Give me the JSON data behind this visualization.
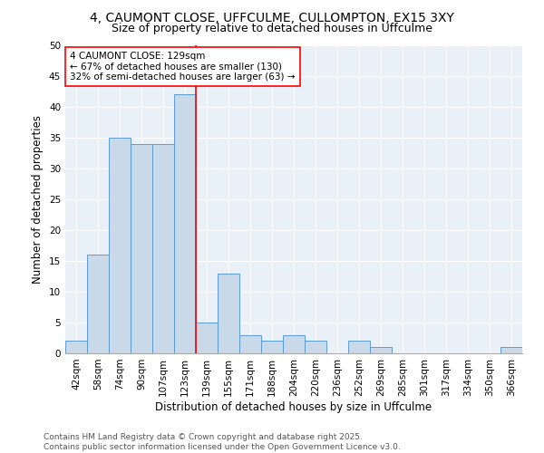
{
  "title1": "4, CAUMONT CLOSE, UFFCULME, CULLOMPTON, EX15 3XY",
  "title2": "Size of property relative to detached houses in Uffculme",
  "xlabel": "Distribution of detached houses by size in Uffculme",
  "ylabel": "Number of detached properties",
  "categories": [
    "42sqm",
    "58sqm",
    "74sqm",
    "90sqm",
    "107sqm",
    "123sqm",
    "139sqm",
    "155sqm",
    "171sqm",
    "188sqm",
    "204sqm",
    "220sqm",
    "236sqm",
    "252sqm",
    "269sqm",
    "285sqm",
    "301sqm",
    "317sqm",
    "334sqm",
    "350sqm",
    "366sqm"
  ],
  "values": [
    2,
    16,
    35,
    34,
    34,
    42,
    5,
    13,
    3,
    2,
    3,
    2,
    0,
    2,
    1,
    0,
    0,
    0,
    0,
    0,
    1
  ],
  "bar_color": "#c9d9e8",
  "bar_edge_color": "#5b9bd5",
  "red_line_x": 5.5,
  "annotation_text": "4 CAUMONT CLOSE: 129sqm\n← 67% of detached houses are smaller (130)\n32% of semi-detached houses are larger (63) →",
  "footnote": "Contains HM Land Registry data © Crown copyright and database right 2025.\nContains public sector information licensed under the Open Government Licence v3.0.",
  "ylim": [
    0,
    50
  ],
  "yticks": [
    0,
    5,
    10,
    15,
    20,
    25,
    30,
    35,
    40,
    45,
    50
  ],
  "bg_color": "#eaf0f8",
  "grid_color": "#ffffff",
  "title_fontsize": 10,
  "subtitle_fontsize": 9,
  "axis_label_fontsize": 8.5,
  "tick_fontsize": 7.5,
  "annotation_fontsize": 7.5,
  "footnote_fontsize": 6.5
}
